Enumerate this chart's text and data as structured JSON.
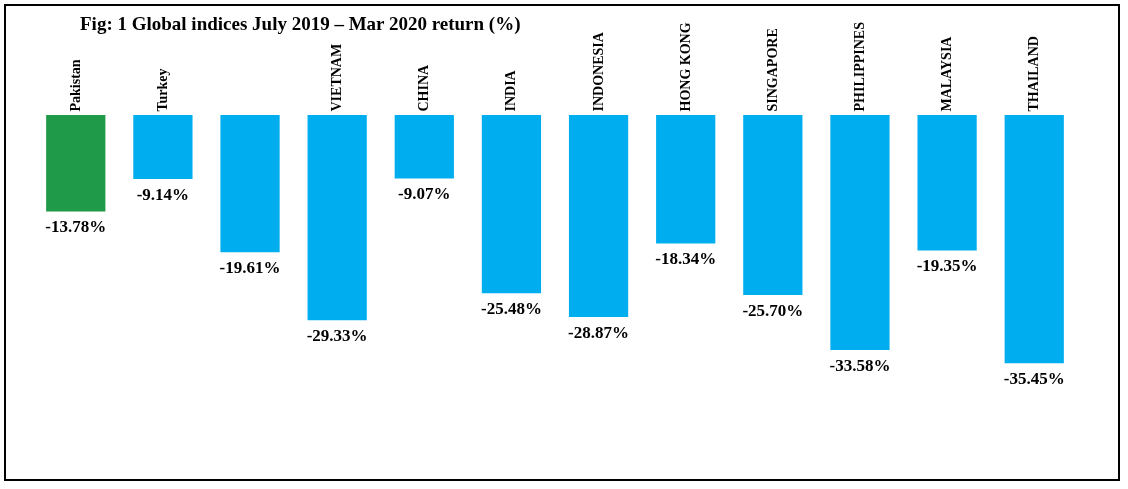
{
  "chart_data": {
    "type": "bar",
    "title": "Fig: 1 Global indices July 2019 – Mar 2020 return (%)",
    "categories": [
      "Pakistan",
      "Turkey",
      null,
      "VIETNAM",
      "CHINA",
      "INDIA",
      "INDONESIA",
      "HONG KONG",
      "SINGAPORE",
      "PHILIPPINES",
      "MALAYSIA",
      "THAILAND"
    ],
    "values": [
      -13.78,
      -9.14,
      -19.61,
      -29.33,
      -9.07,
      -25.48,
      -28.87,
      -18.34,
      -25.7,
      -33.58,
      -19.35,
      -35.45
    ],
    "value_labels": [
      "-13.78%",
      "-9.14%",
      "-19.61%",
      "-29.33%",
      "-9.07%",
      "-25.48%",
      "-28.87%",
      "-18.34%",
      "-25.70%",
      "-33.58%",
      "-19.35%",
      "-35.45%"
    ],
    "colors": [
      "#1f9a48",
      "#00aeef",
      "#00aeef",
      "#00aeef",
      "#00aeef",
      "#00aeef",
      "#00aeef",
      "#00aeef",
      "#00aeef",
      "#00aeef",
      "#00aeef",
      "#00aeef"
    ],
    "grid": false,
    "legend": false
  }
}
